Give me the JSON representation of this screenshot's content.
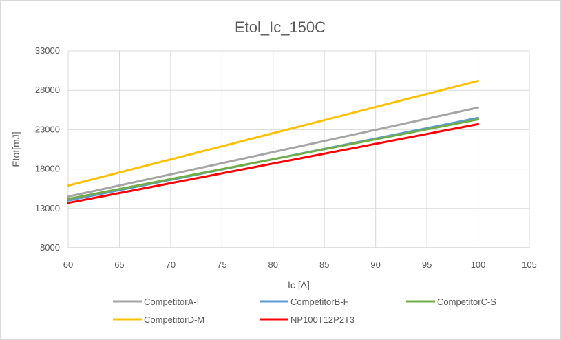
{
  "chart_data": {
    "type": "line",
    "title": "Etol_Ic_150C",
    "xlabel": "Ic [A]",
    "ylabel": "Etot[mJ]",
    "xlim": [
      60,
      105
    ],
    "ylim": [
      8000,
      33000
    ],
    "x_ticks": [
      60,
      65,
      70,
      75,
      80,
      85,
      90,
      95,
      100,
      105
    ],
    "y_ticks": [
      8000,
      13000,
      18000,
      23000,
      28000,
      33000
    ],
    "grid": true,
    "legend_position": "bottom",
    "series": [
      {
        "name": "CompetitorA-I",
        "color": "#a5a5a5",
        "x": [
          60,
          100
        ],
        "y": [
          14500,
          25800
        ]
      },
      {
        "name": "CompetitorB-F",
        "color": "#5b9bd5",
        "x": [
          60,
          100
        ],
        "y": [
          14000,
          24500
        ]
      },
      {
        "name": "CompetitorC-S",
        "color": "#70ad47",
        "x": [
          60,
          100
        ],
        "y": [
          14200,
          24300
        ]
      },
      {
        "name": "CompetitorD-M",
        "color": "#ffc000",
        "x": [
          60,
          100
        ],
        "y": [
          15900,
          29200
        ]
      },
      {
        "name": "NP100T12P2T3",
        "color": "#ff0000",
        "x": [
          60,
          100
        ],
        "y": [
          13700,
          23700
        ]
      }
    ]
  }
}
